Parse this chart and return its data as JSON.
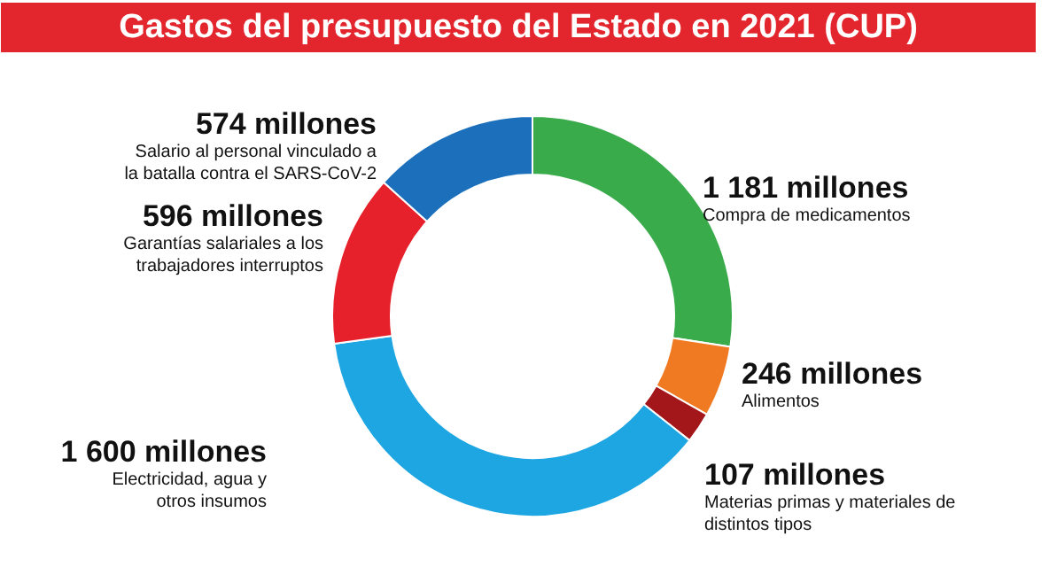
{
  "chart_data": {
    "type": "donut",
    "title": "Gastos del presupuesto del Estado en 2021 (CUP)",
    "categories": [
      "Compra de medicamentos",
      "Alimentos",
      "Materias primas y materiales de distintos tipos",
      "Electricidad, agua y otros insumos",
      "Garantías salariales a los trabajadores interruptos",
      "Salario al personal vinculado a la batalla contra el SARS-CoV-2"
    ],
    "values": [
      1181,
      246,
      107,
      1600,
      596,
      574
    ],
    "colors": [
      "#3aab4b",
      "#f07a22",
      "#a3161a",
      "#1ea6e2",
      "#e6212b",
      "#1c70bb"
    ],
    "value_labels": [
      "1 181 millones",
      "246 millones",
      "107 millones",
      "1 600 millones",
      "596 millones",
      "574 millones"
    ]
  }
}
